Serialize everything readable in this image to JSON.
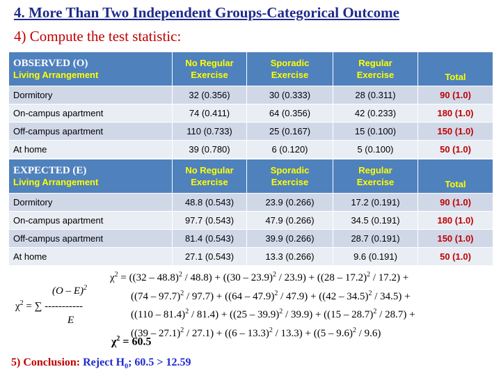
{
  "header": {
    "title": "4. More Than Two Independent Groups-Categorical Outcome",
    "subtitle": "4) Compute the test statistic:"
  },
  "observed": {
    "title": "OBSERVED (O)",
    "row_label": "Living Arrangement",
    "col1_line1": "No Regular",
    "col1_line2": "Exercise",
    "col2_line1": "Sporadic",
    "col2_line2": "Exercise",
    "col3_line1": "Regular",
    "col3_line2": "Exercise",
    "col_total": "Total",
    "rows": [
      {
        "label": "Dormitory",
        "c1": "32 (0.356)",
        "c2": "30 (0.333)",
        "c3": "28 (0.311)",
        "total": "90 (1.0)"
      },
      {
        "label": "On-campus apartment",
        "c1": "74 (0.411)",
        "c2": "64 (0.356)",
        "c3": "42 (0.233)",
        "total": "180 (1.0)"
      },
      {
        "label": "Off-campus apartment",
        "c1": "110 (0.733)",
        "c2": "25 (0.167)",
        "c3": "15 (0.100)",
        "total": "150 (1.0)"
      },
      {
        "label": "At home",
        "c1": "39 (0.780)",
        "c2": "6 (0.120)",
        "c3": "5 (0.100)",
        "total": "50 (1.0)"
      }
    ]
  },
  "expected": {
    "title": "EXPECTED (E)",
    "row_label": "Living Arrangement",
    "col1_line1": "No Regular",
    "col1_line2": "Exercise",
    "col2_line1": "Sporadic",
    "col2_line2": "Exercise",
    "col3_line1": "Regular",
    "col3_line2": "Exercise",
    "col_total": "Total",
    "rows": [
      {
        "label": "Dormitory",
        "c1": "48.8 (0.543)",
        "c2": "23.9 (0.266)",
        "c3": "17.2 (0.191)",
        "total": "90 (1.0)"
      },
      {
        "label": "On-campus apartment",
        "c1": "97.7 (0.543)",
        "c2": "47.9 (0.266)",
        "c3": "34.5 (0.191)",
        "total": "180 (1.0)"
      },
      {
        "label": "Off-campus apartment",
        "c1": "81.4 (0.543)",
        "c2": "39.9 (0.266)",
        "c3": "28.7 (0.191)",
        "total": "150 (1.0)"
      },
      {
        "label": "At home",
        "c1": "27.1 (0.543)",
        "c2": "13.3 (0.266)",
        "c3": "9.6 (0.191)",
        "total": "50 (1.0)"
      }
    ]
  },
  "formula": {
    "chi": "χ",
    "line1": " = ((32 – 48.8)2 / 48.8) + ((30 – 23.9)2 / 23.9) + ((28 – 17.2)2 / 17.2) +",
    "line1_parts": [
      {
        "t": "χ"
      },
      {
        "sup": "2"
      },
      {
        "t": " = ((32 – 48.8)"
      },
      {
        "sup": "2"
      },
      {
        "t": " / 48.8) + ((30 – 23.9)"
      },
      {
        "sup": "2"
      },
      {
        "t": " / 23.9) + ((28 – 17.2)"
      },
      {
        "sup": "2"
      },
      {
        "t": " / 17.2) +"
      }
    ],
    "line2_parts": [
      {
        "t": "((74 – 97.7)"
      },
      {
        "sup": "2"
      },
      {
        "t": " / 97.7) + ((64 – 47.9)"
      },
      {
        "sup": "2"
      },
      {
        "t": " / 47.9) + ((42 – 34.5)"
      },
      {
        "sup": "2"
      },
      {
        "t": " / 34.5) +"
      }
    ],
    "line3_parts": [
      {
        "t": "((110 – 81.4)"
      },
      {
        "sup": "2"
      },
      {
        "t": " / 81.4) + ((25 – 39.9)"
      },
      {
        "sup": "2"
      },
      {
        "t": " / 39.9) + ((15 – 28.7)"
      },
      {
        "sup": "2"
      },
      {
        "t": " / 28.7) +"
      }
    ],
    "line4_parts": [
      {
        "t": "((39 – 27.1)"
      },
      {
        "sup": "2"
      },
      {
        "t": " / 27.1) + ((6 – 13.3)"
      },
      {
        "sup": "2"
      },
      {
        "t": " / 13.3) + ((5 – 9.6)"
      },
      {
        "sup": "2"
      },
      {
        "t": " / 9.6)"
      }
    ],
    "general_numerator": "(O – E)",
    "general_exp": "2",
    "general_lhs": "χ",
    "general_mid": " = ∑ -----------",
    "general_denominator": "E",
    "result_prefix": "χ",
    "result_value": " = 60.5"
  },
  "conclusion": {
    "label": "5)  Conclusion:  ",
    "reject": "Reject H",
    "h_sub": "0",
    "detail": ";  60.5 > 12.59"
  }
}
